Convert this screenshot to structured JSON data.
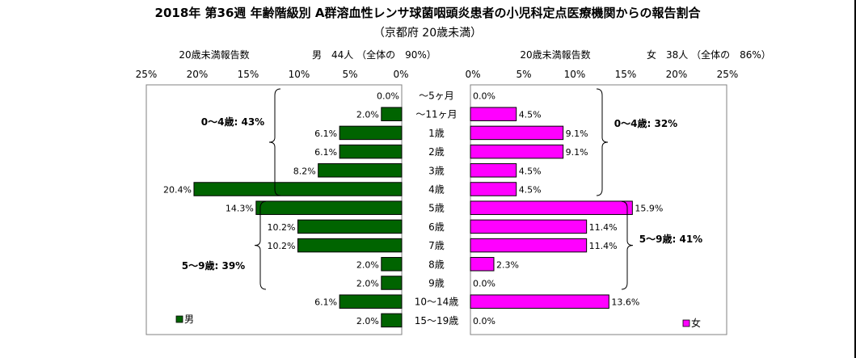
{
  "chart_data": {
    "type": "bar",
    "title": "2018年 第36週 年齢階級別 A群溶血性レンサ球菌咽頭炎患者の小児科定点医療機関からの報告割合",
    "subtitle": "（京都府 20歳未満）",
    "categories": [
      "～5ヶ月",
      "～11ヶ月",
      "1歳",
      "2歳",
      "3歳",
      "4歳",
      "5歳",
      "6歳",
      "7歳",
      "8歳",
      "9歳",
      "10～14歳",
      "15～19歳"
    ],
    "male": {
      "axis_label": "20歳未満報告数",
      "summary": "男　44人 （全体の　90%）",
      "legend": "男",
      "color": "#006400",
      "values": [
        0.0,
        2.0,
        6.1,
        6.1,
        8.2,
        20.4,
        14.3,
        10.2,
        10.2,
        2.0,
        2.0,
        6.1,
        2.0
      ],
      "value_labels": [
        "0.0%",
        "2.0%",
        "6.1%",
        "6.1%",
        "8.2%",
        "20.4%",
        "14.3%",
        "10.2%",
        "10.2%",
        "2.0%",
        "2.0%",
        "6.1%",
        "2.0%"
      ],
      "group_labels": [
        "0～4歳: 43%",
        "5～9歳: 39%"
      ]
    },
    "female": {
      "axis_label": "20歳未満報告数",
      "summary": "女　38人 （全体の　86%）",
      "legend": "女",
      "color": "#FF00FF",
      "values": [
        0.0,
        4.5,
        9.1,
        9.1,
        4.5,
        4.5,
        15.9,
        11.4,
        11.4,
        2.3,
        0.0,
        13.6,
        0.0
      ],
      "value_labels": [
        "0.0%",
        "4.5%",
        "9.1%",
        "9.1%",
        "4.5%",
        "4.5%",
        "15.9%",
        "11.4%",
        "11.4%",
        "2.3%",
        "0.0%",
        "13.6%",
        "0.0%"
      ],
      "group_labels": [
        "0～4歳: 32%",
        "5～9歳: 41%"
      ]
    },
    "xlim": [
      0,
      25
    ],
    "ticks": [
      "0%",
      "5%",
      "10%",
      "15%",
      "20%",
      "25%"
    ],
    "left_ticks": [
      "25%",
      "20%",
      "15%",
      "10%",
      "5%",
      "0%"
    ],
    "grid": false,
    "legend_position": "bottom-left / bottom-right"
  }
}
